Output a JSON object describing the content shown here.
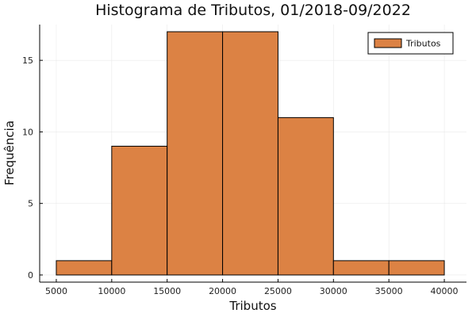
{
  "chart_data": {
    "type": "bar",
    "title": "Histograma de Tributos, 01/2018-09/2022",
    "xlabel": "Tributos",
    "ylabel": "Frequência",
    "bins": [
      {
        "start": 5000,
        "end": 10000,
        "count": 1
      },
      {
        "start": 10000,
        "end": 15000,
        "count": 9
      },
      {
        "start": 15000,
        "end": 20000,
        "count": 17
      },
      {
        "start": 20000,
        "end": 25000,
        "count": 17
      },
      {
        "start": 25000,
        "end": 30000,
        "count": 11
      },
      {
        "start": 30000,
        "end": 35000,
        "count": 1
      },
      {
        "start": 35000,
        "end": 40000,
        "count": 1
      }
    ],
    "xlim": [
      3500,
      42000
    ],
    "ylim": [
      -0.5,
      17.5
    ],
    "xticks": [
      5000,
      10000,
      15000,
      20000,
      25000,
      30000,
      35000,
      40000
    ],
    "yticks": [
      0,
      5,
      10,
      15
    ],
    "xtick_labels": [
      "5000",
      "10000",
      "15000",
      "20000",
      "25000",
      "30000",
      "35000",
      "40000"
    ],
    "ytick_labels": [
      "0",
      "5",
      "10",
      "15"
    ],
    "grid": true,
    "legend": {
      "placement": "top-right",
      "entries": [
        "Tributos"
      ]
    },
    "colors": {
      "bar": "#DC8244",
      "edge": "#000000",
      "grid": "#e9e9e9"
    }
  }
}
